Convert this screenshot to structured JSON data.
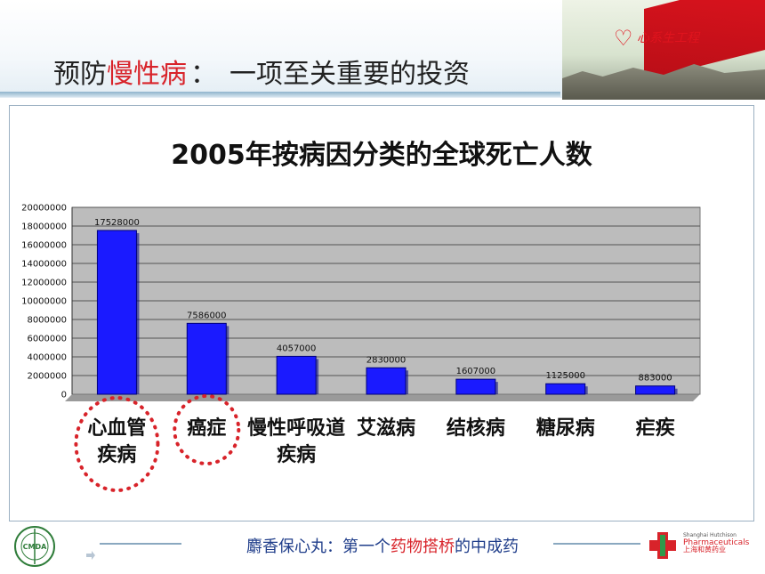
{
  "header": {
    "title_prefix": "预防",
    "title_accent": "慢性病",
    "title_separator": "：",
    "title_suffix": "一项至关重要的投资",
    "banner_logo_text": "心系生工程"
  },
  "chart_data": {
    "type": "bar",
    "title": "2005年按病因分类的全球死亡人数",
    "categories": [
      [
        "心血管",
        "疾病"
      ],
      [
        "癌症"
      ],
      [
        "慢性呼吸道",
        "疾病"
      ],
      [
        "艾滋病"
      ],
      [
        "结核病"
      ],
      [
        "糖尿病"
      ],
      [
        "疟疾"
      ]
    ],
    "values": [
      17528000,
      7586000,
      4057000,
      2830000,
      1607000,
      1125000,
      883000
    ],
    "value_labels": [
      "17528000",
      "7586000",
      "4057000",
      "2830000",
      "1607000",
      "1125000",
      "883000"
    ],
    "yticks": [
      "0",
      "2000000",
      "4000000",
      "6000000",
      "8000000",
      "10000000",
      "12000000",
      "14000000",
      "16000000",
      "18000000",
      "20000000"
    ],
    "ylim": [
      0,
      20000000
    ],
    "grid": true,
    "bar_color": "#1a1aff",
    "plot_background": "#bcbcbc",
    "highlight_color": "#d8232a",
    "highlighted_categories": [
      0,
      1
    ]
  },
  "footer": {
    "text_prefix": "麝香保心丸：第一个",
    "text_accent": "药物搭桥",
    "text_suffix": "的中成药",
    "cmda_label": "CMDA",
    "company_en_1": "Shanghai Hutchison",
    "company_en_2": "Pharmaceuticals",
    "company_cn": "上海和黄药业"
  },
  "colors": {
    "accent_red": "#d8232a",
    "footer_blue": "#1f3d8a"
  }
}
